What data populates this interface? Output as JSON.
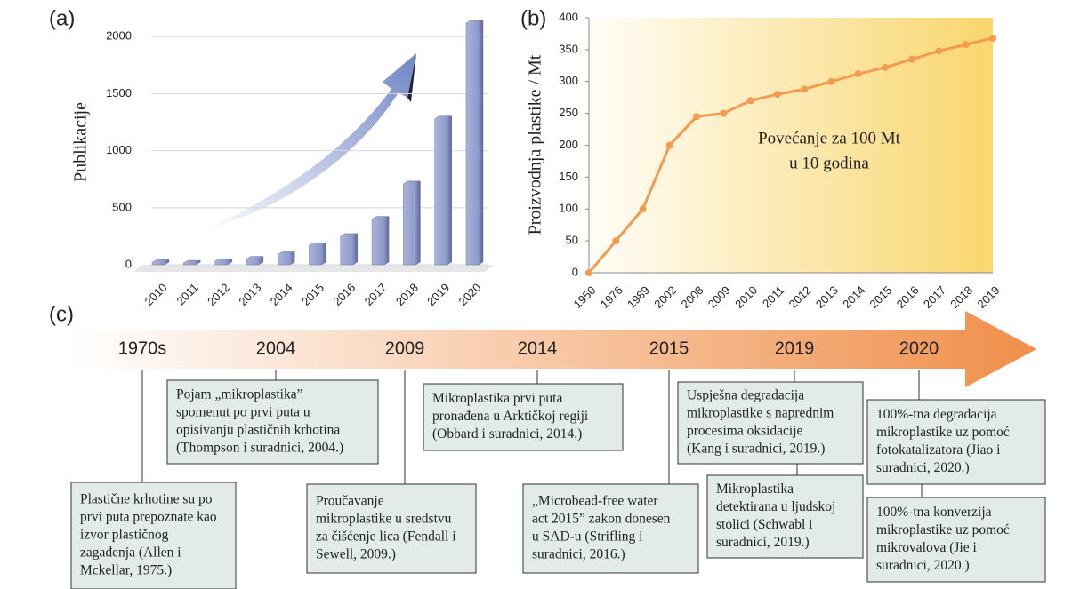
{
  "chart_data": [
    {
      "type": "bar",
      "panel_label": "(a)",
      "ylabel": "Publikacije",
      "categories": [
        "2010",
        "2011",
        "2012",
        "2013",
        "2014",
        "2015",
        "2016",
        "2017",
        "2018",
        "2019",
        "2020"
      ],
      "values": [
        20,
        15,
        30,
        50,
        90,
        170,
        250,
        400,
        710,
        1280,
        2120
      ],
      "color": "#8e9ac8",
      "ylim": [
        0,
        2150
      ],
      "yticks": [
        0,
        500,
        1000,
        1500,
        2000
      ],
      "grid": true
    },
    {
      "type": "line",
      "panel_label": "(b)",
      "ylabel": "Proizvodnja plastike / Mt",
      "categories": [
        "1950",
        "1976",
        "1989",
        "2002",
        "2008",
        "2009",
        "2010",
        "2011",
        "2012",
        "2013",
        "2014",
        "2015",
        "2016",
        "2017",
        "2018",
        "2019"
      ],
      "values": [
        0,
        50,
        100,
        200,
        245,
        250,
        270,
        280,
        288,
        300,
        312,
        322,
        335,
        348,
        358,
        368
      ],
      "color": "#f39b4f",
      "ylim": [
        0,
        400
      ],
      "yticks": [
        0,
        50,
        100,
        150,
        200,
        250,
        300,
        350,
        400
      ],
      "grid": false,
      "annotation": [
        "Povećanje za 100 Mt",
        "u 10 godina"
      ]
    }
  ],
  "timeline": {
    "panel_label": "(c)",
    "milestones": [
      {
        "year": "1970s",
        "events": [
          {
            "lines": [
              "Plastične krhotine su po",
              "prvi puta prepoznate kao",
              "izvor plastičnog",
              "zagađenja (Allen i",
              "Mckellar, 1975.)"
            ]
          }
        ]
      },
      {
        "year": "2004",
        "events": [
          {
            "lines": [
              "Pojam „mikroplastika”",
              "spomenut po prvi puta u",
              "opisivanju plastičnih krhotina",
              "(Thompson i suradnici, 2004.)"
            ]
          }
        ]
      },
      {
        "year": "2009",
        "events": [
          {
            "lines": [
              "Proučavanje",
              "mikroplastike u sredstvu",
              "za čišćenje lica (Fendall i",
              "Sewell, 2009.)"
            ]
          }
        ]
      },
      {
        "year": "2014",
        "events": [
          {
            "lines": [
              "Mikroplastika prvi puta",
              "pronađena u Arktičkoj regiji",
              "(Obbard i suradnici, 2014.)"
            ]
          }
        ]
      },
      {
        "year": "2015",
        "events": [
          {
            "lines": [
              "„Microbead-free water",
              "act 2015” zakon donesen",
              "u SAD-u (Strifling i",
              "suradnici, 2016.)"
            ]
          }
        ]
      },
      {
        "year": "2019",
        "events": [
          {
            "lines": [
              "Uspješna degradacija",
              "mikroplastike s naprednim",
              "procesima oksidacije",
              "(Kang i suradnici, 2019.)"
            ]
          },
          {
            "lines": [
              "Mikroplastika",
              "detektirana u ljudskoj",
              "stolici (Schwabl i",
              "suradnici, 2019.)"
            ]
          }
        ]
      },
      {
        "year": "2020",
        "events": [
          {
            "lines": [
              "100%-tna degradacija",
              "mikroplastike uz pomoć",
              "fotokatalizatora (Jiao i",
              "suradnici, 2020.)"
            ]
          },
          {
            "lines": [
              "100%-tna konverzija",
              "mikroplastike uz pomoć",
              "mikrovalova (Jie i",
              "suradnici, 2020.)"
            ]
          }
        ]
      }
    ]
  }
}
